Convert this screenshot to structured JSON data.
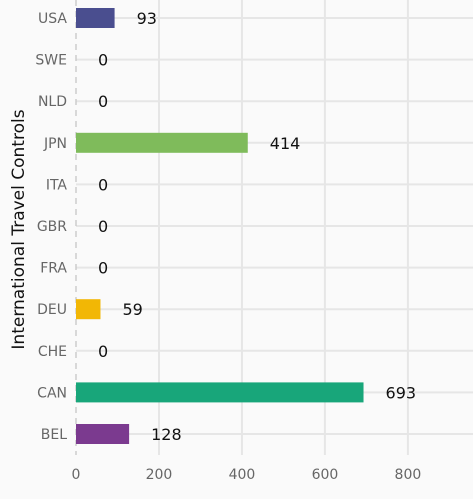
{
  "chart_data": {
    "type": "bar",
    "orientation": "horizontal",
    "title": "",
    "xlabel": "",
    "ylabel": "International Travel Controls",
    "categories": [
      "USA",
      "SWE",
      "NLD",
      "JPN",
      "ITA",
      "GBR",
      "FRA",
      "DEU",
      "CHE",
      "CAN",
      "BEL"
    ],
    "values": [
      93,
      0,
      0,
      414,
      0,
      0,
      0,
      59,
      0,
      693,
      128
    ],
    "colors": [
      "#4a4e8f",
      "#4a4e8f",
      "#4a4e8f",
      "#7fbb5b",
      "#7fbb5b",
      "#7fbb5b",
      "#7fbb5b",
      "#f2b705",
      "#18a67a",
      "#18a67a",
      "#7b3a8f"
    ],
    "xlim": [
      0,
      900
    ],
    "xticks": [
      0,
      200,
      400,
      600,
      800
    ],
    "grid": true,
    "legend": "none"
  }
}
